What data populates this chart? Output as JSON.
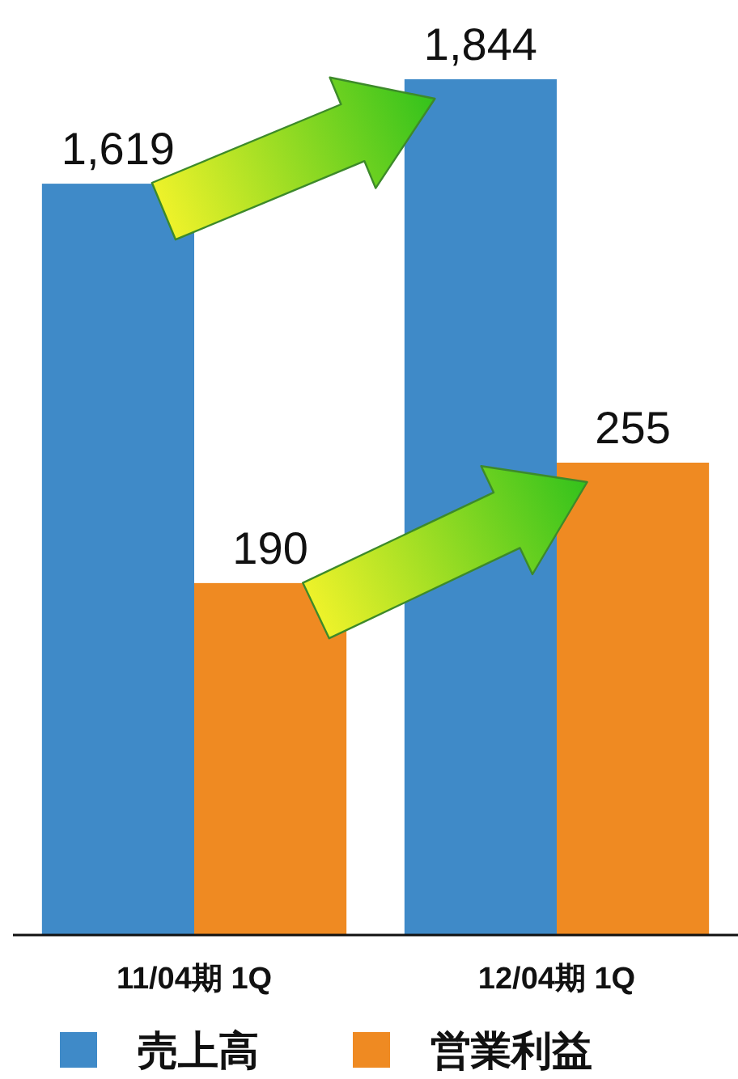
{
  "chart_data": {
    "type": "bar",
    "categories": [
      "11/04期 1Q",
      "12/04期 1Q"
    ],
    "series": [
      {
        "name": "売上高",
        "color": "#3f8ac8",
        "values": [
          1619,
          1844
        ],
        "value_labels": [
          "1,619",
          "1,844"
        ]
      },
      {
        "name": "営業利益",
        "color": "#ef8a22",
        "values": [
          190,
          255
        ],
        "axis": "y2",
        "value_labels": [
          "190",
          "255"
        ]
      }
    ],
    "tick_labels": "x",
    "legend": "bottom"
  }
}
